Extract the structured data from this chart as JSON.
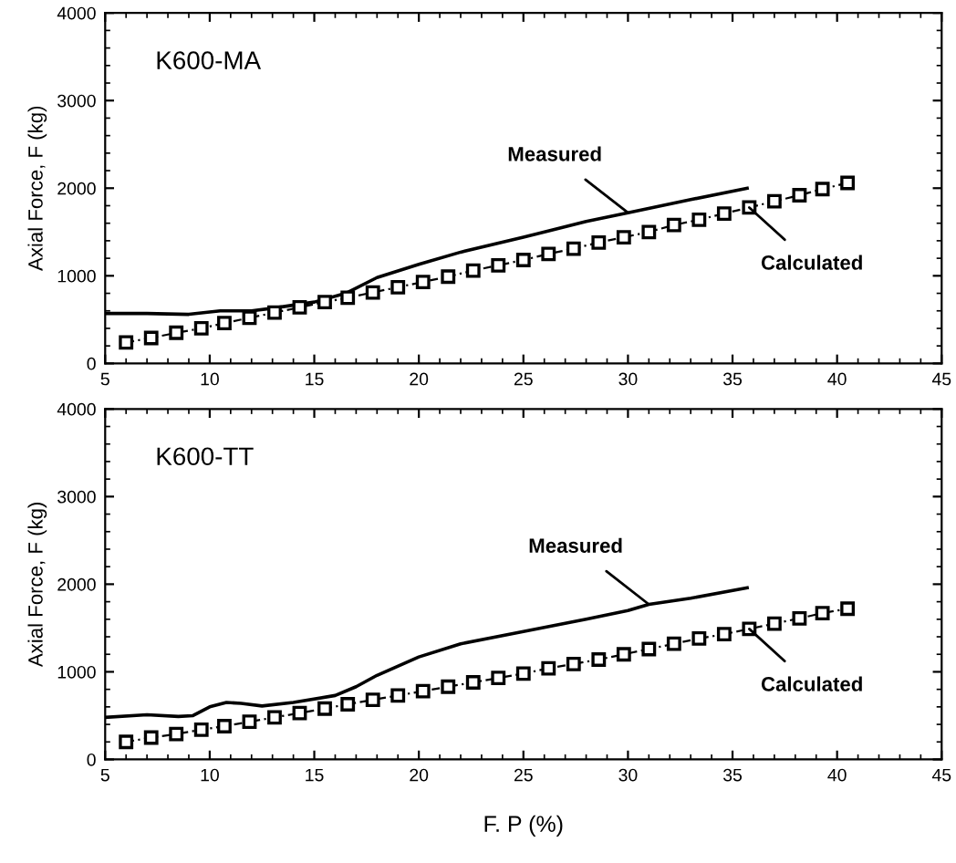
{
  "chart_data": [
    {
      "type": "line",
      "title": "K600-MA",
      "ylabel": "Axial Force, F (kg)",
      "xlim": [
        5,
        45
      ],
      "ylim": [
        0,
        4000
      ],
      "xticks": [
        5,
        10,
        15,
        20,
        25,
        30,
        35,
        40,
        45
      ],
      "yticks": [
        0,
        1000,
        2000,
        3000,
        4000
      ],
      "grid": false,
      "legend": false,
      "annotations": [
        {
          "text": "Measured",
          "x": 30,
          "y": 1720
        },
        {
          "text": "Calculated",
          "x": 35.8,
          "y": 1780
        }
      ],
      "series": [
        {
          "color": "#000000",
          "marker": "none",
          "line_style": "solid",
          "x": [
            5,
            7,
            9,
            10.5,
            12,
            13,
            15,
            16.5,
            18,
            20,
            22,
            25,
            28,
            30,
            33,
            35.7
          ],
          "values": [
            570,
            570,
            560,
            600,
            600,
            630,
            700,
            800,
            980,
            1130,
            1270,
            1440,
            1620,
            1720,
            1870,
            2000
          ]
        },
        {
          "color": "#000000",
          "marker": "square",
          "line_style": "dashed",
          "x": [
            6,
            7.2,
            8.4,
            9.6,
            10.7,
            11.9,
            13.1,
            14.3,
            15.5,
            16.6,
            17.8,
            19,
            20.2,
            21.4,
            22.6,
            23.8,
            25,
            26.2,
            27.4,
            28.6,
            29.8,
            31,
            32.2,
            33.4,
            34.6,
            35.8,
            37,
            38.2,
            39.3,
            40.5
          ],
          "values": [
            240,
            290,
            350,
            400,
            460,
            520,
            580,
            640,
            700,
            750,
            810,
            870,
            930,
            990,
            1060,
            1120,
            1180,
            1250,
            1310,
            1380,
            1440,
            1500,
            1580,
            1640,
            1710,
            1780,
            1850,
            1920,
            1990,
            2060
          ]
        }
      ]
    },
    {
      "type": "line",
      "title": "K600-TT",
      "xlabel": "F. P (%)",
      "ylabel": "Axial Force, F (kg)",
      "xlim": [
        5,
        45
      ],
      "ylim": [
        0,
        4000
      ],
      "xticks": [
        5,
        10,
        15,
        20,
        25,
        30,
        35,
        40,
        45
      ],
      "yticks": [
        0,
        1000,
        2000,
        3000,
        4000
      ],
      "grid": false,
      "legend": false,
      "annotations": [
        {
          "text": "Measured",
          "x": 31,
          "y": 1770
        },
        {
          "text": "Calculated",
          "x": 35.8,
          "y": 1490
        }
      ],
      "series": [
        {
          "color": "#000000",
          "marker": "none",
          "line_style": "solid",
          "x": [
            5,
            7,
            8.5,
            9.2,
            10,
            10.8,
            11.5,
            12.5,
            14,
            16,
            17,
            18,
            20,
            22,
            25,
            28,
            30,
            31,
            33,
            35.7
          ],
          "values": [
            480,
            510,
            490,
            500,
            600,
            650,
            640,
            610,
            650,
            730,
            830,
            960,
            1170,
            1320,
            1460,
            1600,
            1700,
            1770,
            1840,
            1960
          ]
        },
        {
          "color": "#000000",
          "marker": "square",
          "line_style": "dashed",
          "x": [
            6,
            7.2,
            8.4,
            9.6,
            10.7,
            11.9,
            13.1,
            14.3,
            15.5,
            16.6,
            17.8,
            19,
            20.2,
            21.4,
            22.6,
            23.8,
            25,
            26.2,
            27.4,
            28.6,
            29.8,
            31,
            32.2,
            33.4,
            34.6,
            35.8,
            37,
            38.2,
            39.3,
            40.5
          ],
          "values": [
            200,
            250,
            290,
            340,
            380,
            430,
            480,
            530,
            580,
            630,
            680,
            730,
            780,
            830,
            880,
            930,
            980,
            1040,
            1090,
            1140,
            1200,
            1260,
            1320,
            1380,
            1430,
            1490,
            1550,
            1610,
            1670,
            1720
          ]
        }
      ]
    }
  ]
}
